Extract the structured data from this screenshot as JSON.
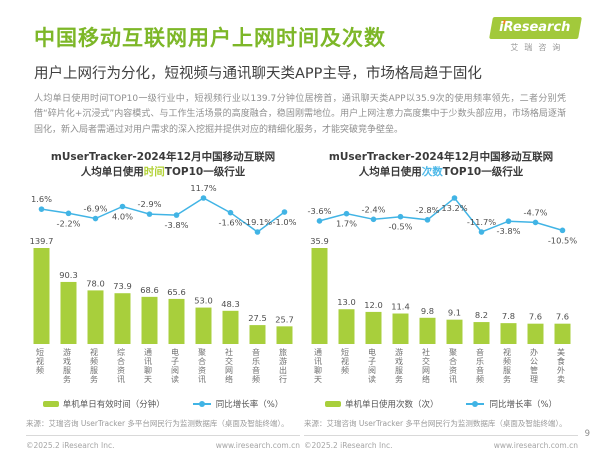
{
  "page": {
    "title": "中国移动互联网用户上网时间及次数",
    "subtitle": "用户上网行为分化，短视频与通讯聊天类APP主导，市场格局趋于固化",
    "body": "人均单日使用时间TOP10一级行业中，短视频行业以139.7分钟位居榜首，通讯聊天类APP以35.9次的使用频率领先，二者分别凭借“碎片化+沉浸式”内容模式、与工作生活场景的高度融合，稳固刚需地位。用户上网注意力高度集中于少数头部应用，市场格局逐渐固化，新入局者需通过对用户需求的深入挖掘并提供对应的精细化服务，才能突破竞争壁垒。",
    "page_number": "9"
  },
  "logo": {
    "brand": "iResearch",
    "brand_cn": "艾瑞咨询"
  },
  "colors": {
    "heading_green": "#7db728",
    "bar_green": "#a8cf3c",
    "line_blue": "#41b4e5",
    "highlight_green": "#b2d235",
    "highlight_blue": "#4db8e8"
  },
  "chart_data": [
    {
      "type": "bar+line",
      "title_line1": "mUserTracker-2024年12月中国移动互联网",
      "title_line2_pre": "人均单日使用",
      "title_highlight": "时间",
      "title_line2_post": "TOP10一级行业",
      "highlight_color": "#b2d235",
      "bar_color": "#a8cf3c",
      "line_color": "#41b4e5",
      "grid": false,
      "legend_position": "bottom",
      "categories": [
        "短视频",
        "游戏服务",
        "视频服务",
        "综合资讯",
        "通讯聊天",
        "电子阅读",
        "聚合资讯",
        "社交网络",
        "音乐音频",
        "旅游出行"
      ],
      "bar_series": {
        "name": "单机单日有效时间（分钟）",
        "unit": "分钟",
        "values": [
          139.7,
          90.3,
          78.0,
          73.9,
          68.6,
          65.6,
          53.0,
          48.3,
          27.5,
          25.7
        ]
      },
      "line_series": {
        "name": "同比增长率（%）",
        "unit": "%",
        "values": [
          1.6,
          -2.2,
          -6.9,
          4.0,
          -2.9,
          -3.8,
          11.7,
          -1.6,
          -19.1,
          -1.0
        ]
      }
    },
    {
      "type": "bar+line",
      "title_line1": "mUserTracker-2024年12月中国移动互联网",
      "title_line2_pre": "人均单日使用",
      "title_highlight": "次数",
      "title_line2_post": "TOP10一级行业",
      "highlight_color": "#4db8e8",
      "bar_color": "#a8cf3c",
      "line_color": "#41b4e5",
      "grid": false,
      "legend_position": "bottom",
      "categories": [
        "通讯聊天",
        "短视频",
        "电子阅读",
        "游戏服务",
        "社交网络",
        "聚合资讯",
        "音乐音频",
        "视频服务",
        "办公管理",
        "美食外卖"
      ],
      "bar_series": {
        "name": "单机单日使用次数（次）",
        "unit": "次",
        "values": [
          35.9,
          13.0,
          12.0,
          11.4,
          9.8,
          9.1,
          8.2,
          7.8,
          7.6,
          7.6
        ]
      },
      "line_series": {
        "name": "同比增长率（%）",
        "unit": "%",
        "values": [
          -3.6,
          1.7,
          -2.4,
          -0.5,
          -2.8,
          13.2,
          -11.7,
          -3.8,
          -4.7,
          -10.5
        ]
      }
    }
  ],
  "footer": {
    "source": "来源：艾瑞咨询 UserTracker 多平台网民行为监测数据库（桌面及智能终端）。",
    "copyright": "©2025.2 iResearch Inc.",
    "website": "www.iresearch.com.cn"
  }
}
